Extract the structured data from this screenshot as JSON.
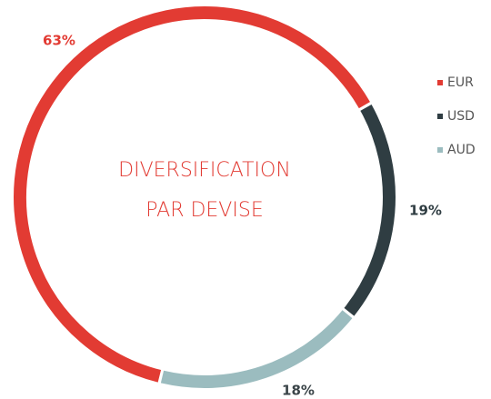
{
  "chart_data": {
    "type": "donut",
    "title": [
      "DIVERSIFICATION",
      "PAR DEVISE"
    ],
    "categories": [
      "EUR",
      "USD",
      "AUD"
    ],
    "values": [
      63,
      19,
      18
    ],
    "value_labels": [
      "63%",
      "19%",
      "18%"
    ],
    "colors": [
      "#e23b33",
      "#2f3d42",
      "#9bbcbf"
    ],
    "legend": "right"
  }
}
